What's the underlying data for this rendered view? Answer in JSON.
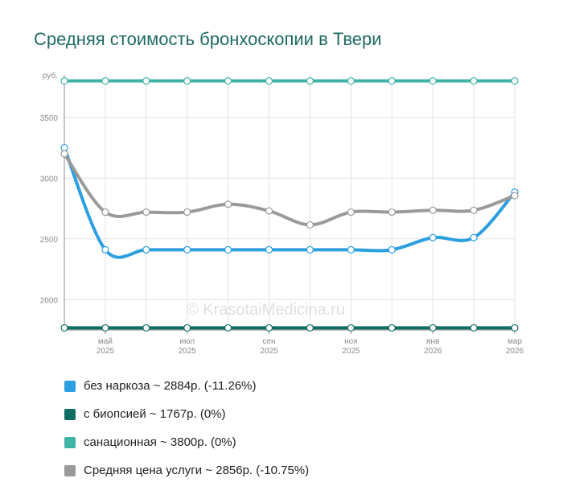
{
  "title": "Средняя стоимость бронхоскопии в Твери",
  "watermark": "© KrasotaiMedicina.ru",
  "chart_data": {
    "type": "line",
    "yunit": "руб.",
    "ylim": [
      1750,
      3850
    ],
    "yticks": [
      2000,
      2500,
      3000,
      3500
    ],
    "x": [
      "2025-04",
      "2025-05",
      "2025-06",
      "2025-07",
      "2025-08",
      "2025-09",
      "2025-10",
      "2025-11",
      "2025-12",
      "2026-01",
      "2026-02",
      "2026-03"
    ],
    "xtick_labels": [
      {
        "month": "май",
        "year": "2025",
        "at": "2025-05"
      },
      {
        "month": "июл",
        "year": "2025",
        "at": "2025-07"
      },
      {
        "month": "сен",
        "year": "2025",
        "at": "2025-09"
      },
      {
        "month": "ноя",
        "year": "2025",
        "at": "2025-11"
      },
      {
        "month": "янв",
        "year": "2026",
        "at": "2026-01"
      },
      {
        "month": "мар",
        "year": "2026",
        "at": "2026-03"
      }
    ],
    "grid": true,
    "legend_position": "bottom",
    "series": [
      {
        "name": "без наркоза",
        "color": "#2b9fe0",
        "values": [
          3250,
          2410,
          2410,
          2410,
          2410,
          2410,
          2410,
          2410,
          2410,
          2510,
          2510,
          2884
        ]
      },
      {
        "name": "с биопсией",
        "color": "#0d6e66",
        "values": [
          1767,
          1767,
          1767,
          1767,
          1767,
          1767,
          1767,
          1767,
          1767,
          1767,
          1767,
          1767
        ]
      },
      {
        "name": "санационная",
        "color": "#3fb3a6",
        "values": [
          3800,
          3800,
          3800,
          3800,
          3800,
          3800,
          3800,
          3800,
          3800,
          3800,
          3800,
          3800
        ]
      },
      {
        "name": "Средняя цена услуги",
        "color": "#9a9a9a",
        "values": [
          3200,
          2720,
          2720,
          2720,
          2785,
          2730,
          2615,
          2720,
          2720,
          2735,
          2735,
          2856
        ]
      }
    ]
  },
  "legend": [
    {
      "text": "без наркоза ~ 2884р. (-11.26%)",
      "color": "#2b9fe0"
    },
    {
      "text": "с биопсией ~ 1767р. (0%)",
      "color": "#0d6e66"
    },
    {
      "text": "санационная ~ 3800р. (0%)",
      "color": "#3fb3a6"
    },
    {
      "text": "Средняя цена услуги ~ 2856р. (-10.75%)",
      "color": "#9a9a9a"
    }
  ]
}
